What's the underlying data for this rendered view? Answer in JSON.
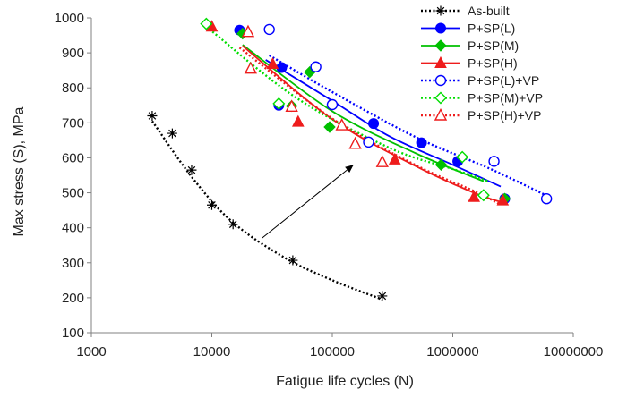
{
  "chart_data": {
    "type": "scatter",
    "title": "",
    "xlabel": "Fatigue life cycles (N)",
    "ylabel": "Max stress (S), MPa",
    "xscale": "log",
    "xlim": [
      1000,
      10000000
    ],
    "ylim": [
      100,
      1000
    ],
    "x_ticks": [
      1000,
      10000,
      100000,
      1000000,
      10000000
    ],
    "x_tick_labels": [
      "1000",
      "10000",
      "100000",
      "1000000",
      "10000000"
    ],
    "y_ticks": [
      100,
      200,
      300,
      400,
      500,
      600,
      700,
      800,
      900,
      1000
    ],
    "y_tick_labels": [
      "100",
      "200",
      "300",
      "400",
      "500",
      "600",
      "700",
      "800",
      "900",
      "1000"
    ],
    "grid": false,
    "legend_position": "top-right",
    "annotations": [
      {
        "type": "arrow",
        "from": [
          26000,
          370
        ],
        "to": [
          150000,
          580
        ]
      }
    ],
    "series": [
      {
        "name": "As-built",
        "color": "#000000",
        "marker": "asterisk",
        "line": "dotted",
        "points": [
          [
            3200,
            720
          ],
          [
            4700,
            670
          ],
          [
            6800,
            565
          ],
          [
            10000,
            465
          ],
          [
            15000,
            410
          ],
          [
            47000,
            307
          ],
          [
            260000,
            205
          ]
        ],
        "trend": [
          [
            3200,
            705
          ],
          [
            7000,
            540
          ],
          [
            15000,
            415
          ],
          [
            40000,
            315
          ],
          [
            100000,
            250
          ],
          [
            260000,
            195
          ]
        ]
      },
      {
        "name": "P+SP(L)",
        "color": "#0000ff",
        "marker": "filled-circle",
        "line": "solid",
        "points": [
          [
            17000,
            965
          ],
          [
            38000,
            858
          ],
          [
            36000,
            750
          ],
          [
            220000,
            698
          ],
          [
            550000,
            643
          ],
          [
            1100000,
            590
          ],
          [
            2700000,
            483
          ]
        ],
        "trend": [
          [
            28000,
            880
          ],
          [
            100000,
            763
          ],
          [
            300000,
            661
          ],
          [
            1000000,
            580
          ],
          [
            2500000,
            518
          ]
        ]
      },
      {
        "name": "P+SP(M)",
        "color": "#00c000",
        "marker": "filled-diamond",
        "line": "solid",
        "points": [
          [
            18000,
            955
          ],
          [
            65000,
            845
          ],
          [
            46000,
            748
          ],
          [
            95000,
            688
          ],
          [
            800000,
            580
          ],
          [
            2700000,
            483
          ]
        ],
        "trend": [
          [
            18000,
            923
          ],
          [
            100000,
            733
          ],
          [
            500000,
            612
          ],
          [
            1800000,
            533
          ]
        ]
      },
      {
        "name": "P+SP(H)",
        "color": "#ee1c1c",
        "marker": "filled-triangle",
        "line": "solid",
        "points": [
          [
            10000,
            975
          ],
          [
            32000,
            868
          ],
          [
            46000,
            746
          ],
          [
            52000,
            703
          ],
          [
            330000,
            595
          ],
          [
            1500000,
            488
          ],
          [
            2600000,
            478
          ]
        ],
        "trend": [
          [
            18000,
            920
          ],
          [
            100000,
            710
          ],
          [
            500000,
            575
          ],
          [
            1500000,
            500
          ],
          [
            2600000,
            472
          ]
        ]
      },
      {
        "name": "P+SP(L)+VP",
        "color": "#0000ff",
        "marker": "open-circle",
        "line": "dotted",
        "points": [
          [
            30000,
            967
          ],
          [
            73000,
            860
          ],
          [
            100000,
            752
          ],
          [
            200000,
            645
          ],
          [
            2200000,
            590
          ],
          [
            6000000,
            483
          ]
        ],
        "trend": [
          [
            30000,
            893
          ],
          [
            100000,
            788
          ],
          [
            500000,
            658
          ],
          [
            2000000,
            570
          ],
          [
            6000000,
            492
          ]
        ]
      },
      {
        "name": "P+SP(M)+VP",
        "color": "#00dd00",
        "marker": "open-diamond",
        "line": "dotted",
        "points": [
          [
            9000,
            983
          ],
          [
            36000,
            755
          ],
          [
            1200000,
            602
          ],
          [
            1800000,
            493
          ]
        ],
        "trend": [
          [
            9000,
            975
          ],
          [
            50000,
            772
          ],
          [
            300000,
            628
          ],
          [
            1000000,
            568
          ],
          [
            2000000,
            532
          ]
        ]
      },
      {
        "name": "P+SP(H)+VP",
        "color": "#ee1c1c",
        "marker": "open-triangle",
        "line": "dotted",
        "points": [
          [
            20000,
            960
          ],
          [
            21000,
            855
          ],
          [
            46000,
            746
          ],
          [
            120000,
            693
          ],
          [
            155000,
            640
          ],
          [
            260000,
            588
          ]
        ],
        "trend": [
          [
            17000,
            915
          ],
          [
            100000,
            712
          ],
          [
            500000,
            578
          ],
          [
            1500000,
            505
          ],
          [
            2500000,
            466
          ]
        ]
      }
    ]
  }
}
